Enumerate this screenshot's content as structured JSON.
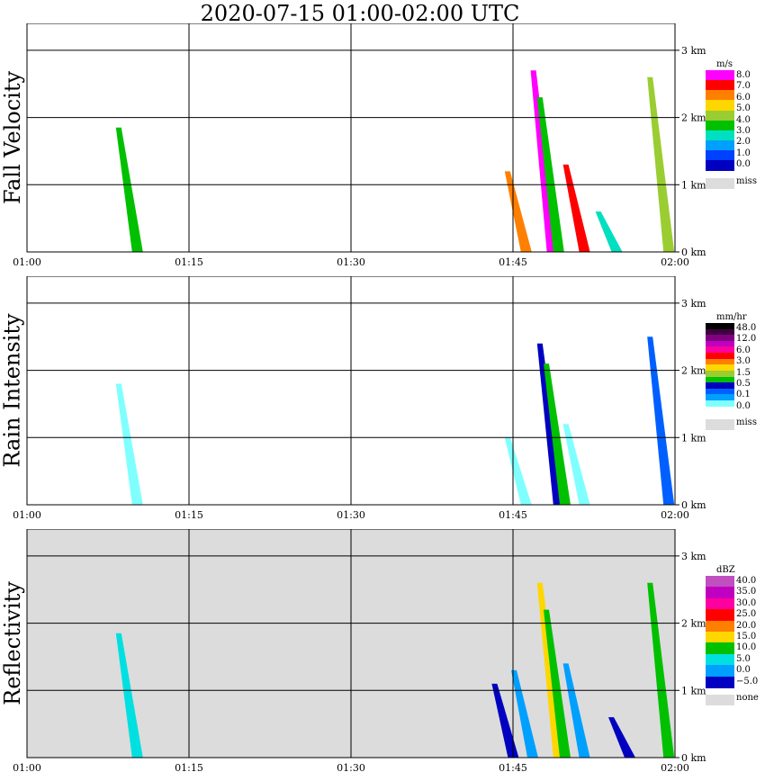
{
  "title": "2020-07-15   01:00-02:00 UTC",
  "chart_data": [
    {
      "type": "heatmap",
      "ylabel": "Fall Velocity",
      "unit": "m/s",
      "x_ticks": [
        "01:00",
        "01:15",
        "01:30",
        "01:45",
        "02:00"
      ],
      "y_ticks": [
        "0 km",
        "1 km",
        "2 km",
        "3 km"
      ],
      "ylim": [
        0,
        3.4
      ],
      "grid": true,
      "legend": {
        "labels": [
          "8.0",
          "7.0",
          "6.0",
          "5.0",
          "4.0",
          "3.0",
          "2.0",
          "1.0",
          "0.0",
          "miss"
        ],
        "colors": [
          "#ff00ff",
          "#ff0000",
          "#ff7f00",
          "#ffd700",
          "#9acd32",
          "#00c000",
          "#00e0c0",
          "#00a0ff",
          "#0040ff",
          "#0000c0"
        ],
        "miss_color": "#dcdcdc"
      },
      "background": "#ffffff",
      "streaks": [
        {
          "t": 0.14,
          "h": 1.85,
          "color": "#00c000"
        },
        {
          "t": 0.74,
          "h": 1.2,
          "color": "#ff7f00"
        },
        {
          "t": 0.78,
          "h": 2.7,
          "color": "#ff00ff"
        },
        {
          "t": 0.79,
          "h": 2.3,
          "color": "#00c000"
        },
        {
          "t": 0.83,
          "h": 1.3,
          "color": "#ff0000"
        },
        {
          "t": 0.88,
          "h": 0.6,
          "color": "#00e0c0"
        },
        {
          "t": 0.96,
          "h": 2.6,
          "color": "#9acd32"
        }
      ]
    },
    {
      "type": "heatmap",
      "ylabel": "Rain Intensity",
      "unit": "mm/hr",
      "x_ticks": [
        "01:00",
        "01:15",
        "01:30",
        "01:45",
        "02:00"
      ],
      "y_ticks": [
        "0 km",
        "1 km",
        "2 km",
        "3 km"
      ],
      "ylim": [
        0,
        3.4
      ],
      "grid": true,
      "legend": {
        "labels": [
          "48.0",
          "12.0",
          "6.0",
          "3.0",
          "1.5",
          "0.5",
          "0.1",
          "0.0",
          "miss"
        ],
        "colors": [
          "#000000",
          "#400040",
          "#800080",
          "#c000c0",
          "#ff00a0",
          "#ff0000",
          "#ff7f00",
          "#ffd700",
          "#9acd32",
          "#00c000",
          "#0000c0",
          "#0060ff",
          "#00a0ff",
          "#80ffff",
          "#ffffff"
        ],
        "miss_color": "#dcdcdc"
      },
      "background": "#ffffff",
      "streaks": [
        {
          "t": 0.14,
          "h": 1.8,
          "color": "#80ffff"
        },
        {
          "t": 0.74,
          "h": 1.0,
          "color": "#80ffff"
        },
        {
          "t": 0.79,
          "h": 2.4,
          "color": "#0000c0"
        },
        {
          "t": 0.8,
          "h": 2.1,
          "color": "#00c000"
        },
        {
          "t": 0.83,
          "h": 1.2,
          "color": "#80ffff"
        },
        {
          "t": 0.96,
          "h": 2.5,
          "color": "#0060ff"
        }
      ]
    },
    {
      "type": "heatmap",
      "ylabel": "Reflectivity",
      "unit": "dBZ",
      "x_ticks": [
        "01:00",
        "01:15",
        "01:30",
        "01:45",
        "02:00"
      ],
      "y_ticks": [
        "0 km",
        "1 km",
        "2 km",
        "3 km"
      ],
      "ylim": [
        0,
        3.4
      ],
      "grid": true,
      "legend": {
        "labels": [
          "40.0",
          "35.0",
          "30.0",
          "25.0",
          "20.0",
          "15.0",
          "10.0",
          "5.0",
          "0.0",
          "−5.0",
          "none"
        ],
        "colors": [
          "#c050c0",
          "#c000c0",
          "#ff00a0",
          "#ff0000",
          "#ff7f00",
          "#ffd700",
          "#00c000",
          "#00e0e0",
          "#00a0ff",
          "#0000c0"
        ],
        "miss_color": "#dcdcdc"
      },
      "background": "#dcdcdc",
      "streaks": [
        {
          "t": 0.14,
          "h": 1.85,
          "color": "#00e0e0"
        },
        {
          "t": 0.72,
          "h": 1.1,
          "color": "#0000c0"
        },
        {
          "t": 0.75,
          "h": 1.3,
          "color": "#00a0ff"
        },
        {
          "t": 0.79,
          "h": 2.6,
          "color": "#ffd700"
        },
        {
          "t": 0.8,
          "h": 2.2,
          "color": "#00c000"
        },
        {
          "t": 0.83,
          "h": 1.4,
          "color": "#00a0ff"
        },
        {
          "t": 0.9,
          "h": 0.6,
          "color": "#0000c0"
        },
        {
          "t": 0.96,
          "h": 2.6,
          "color": "#00c000"
        }
      ]
    }
  ]
}
